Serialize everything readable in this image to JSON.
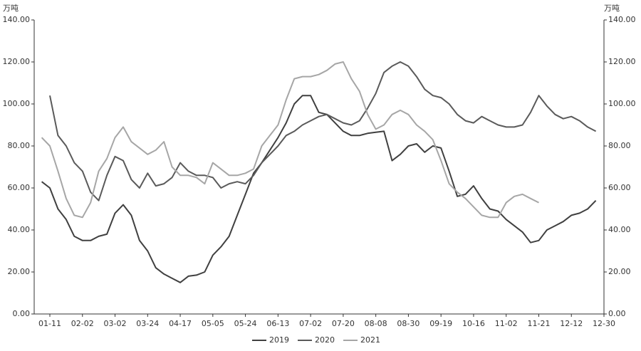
{
  "chart_data": {
    "type": "line",
    "y_label": "万吨",
    "y2_label": "万吨",
    "categories": [
      null,
      "01-11",
      null,
      null,
      null,
      "02-02",
      null,
      null,
      null,
      "03-02",
      null,
      null,
      null,
      "03-24",
      null,
      null,
      null,
      "04-17",
      null,
      null,
      null,
      "05-05",
      null,
      null,
      null,
      "05-24",
      null,
      null,
      null,
      "06-13",
      null,
      null,
      null,
      "07-02",
      null,
      null,
      null,
      "07-20",
      null,
      null,
      null,
      "08-08",
      null,
      null,
      null,
      "08-30",
      null,
      null,
      null,
      "09-19",
      null,
      null,
      null,
      "10-16",
      null,
      null,
      null,
      "11-02",
      null,
      null,
      null,
      "11-21",
      null,
      null,
      null,
      "12-12",
      null,
      null,
      null,
      "12-30"
    ],
    "series": [
      {
        "name": "2019",
        "color": "#404040",
        "values": [
          63,
          60,
          50,
          45,
          37,
          35,
          35,
          37,
          38,
          48,
          52,
          47,
          35,
          30,
          22,
          19,
          17,
          15,
          18,
          18.5,
          20,
          28,
          32,
          37,
          47,
          57,
          67,
          72,
          78,
          84,
          91,
          100,
          104,
          104,
          96,
          95,
          91,
          87,
          85,
          85,
          86,
          86.5,
          87,
          73,
          76,
          80,
          81,
          77,
          80,
          79,
          68,
          56,
          57,
          61,
          55,
          50,
          49,
          45,
          42,
          39,
          34,
          35,
          40,
          42,
          44,
          47,
          48,
          50,
          54,
          null
        ]
      },
      {
        "name": "2020",
        "color": "#5a5a5a",
        "values": [
          null,
          104,
          85,
          80,
          72,
          68,
          58,
          54,
          66,
          75,
          73,
          64,
          60,
          67,
          61,
          62,
          65,
          72,
          68,
          66,
          66,
          65,
          60,
          62,
          63,
          62,
          66,
          72,
          76,
          80,
          85,
          87,
          90,
          92,
          94,
          95,
          93,
          91,
          90,
          92,
          98,
          105,
          115,
          118,
          120,
          118,
          113,
          107,
          104,
          103,
          100,
          95,
          92,
          91,
          94,
          92,
          90,
          89,
          89,
          90,
          96,
          104,
          99,
          95,
          93,
          94,
          92,
          89,
          87,
          null
        ]
      },
      {
        "name": "2021",
        "color": "#a6a6a6",
        "values": [
          84,
          80,
          68,
          55,
          47,
          46,
          53,
          68,
          74,
          84,
          89,
          82,
          79,
          76,
          78,
          82,
          70,
          66,
          66,
          65,
          62,
          72,
          69,
          66,
          66,
          67,
          69,
          80,
          85,
          90,
          102,
          112,
          113,
          113,
          114,
          116,
          119,
          120,
          112,
          106,
          95,
          88,
          90,
          95,
          97,
          95,
          90,
          87,
          83,
          73,
          62,
          58,
          55,
          51,
          47,
          46,
          46,
          53,
          56,
          57,
          55,
          53,
          null,
          null,
          null,
          null,
          null,
          null,
          null,
          null
        ]
      }
    ],
    "ylim": [
      0,
      140
    ],
    "yticks": [
      {
        "value": 0,
        "label": "0.00"
      },
      {
        "value": 20,
        "label": "20.00"
      },
      {
        "value": 40,
        "label": "40.00"
      },
      {
        "value": 60,
        "label": "60.00"
      },
      {
        "value": 80,
        "label": "80.00"
      },
      {
        "value": 100,
        "label": "100.00"
      },
      {
        "value": 120,
        "label": "120.00"
      },
      {
        "value": 140,
        "label": "140.00"
      }
    ],
    "y2lim": [
      0,
      140
    ],
    "y2ticks": [
      {
        "value": 0,
        "label": "0.00"
      },
      {
        "value": 20,
        "label": "20.00"
      },
      {
        "value": 40,
        "label": "40.00"
      },
      {
        "value": 60,
        "label": "60.00"
      },
      {
        "value": 80,
        "label": "80.00"
      },
      {
        "value": 100,
        "label": "100.00"
      },
      {
        "value": 120,
        "label": "120.00"
      },
      {
        "value": 140,
        "label": "140.00"
      }
    ],
    "legend": "bottom"
  }
}
